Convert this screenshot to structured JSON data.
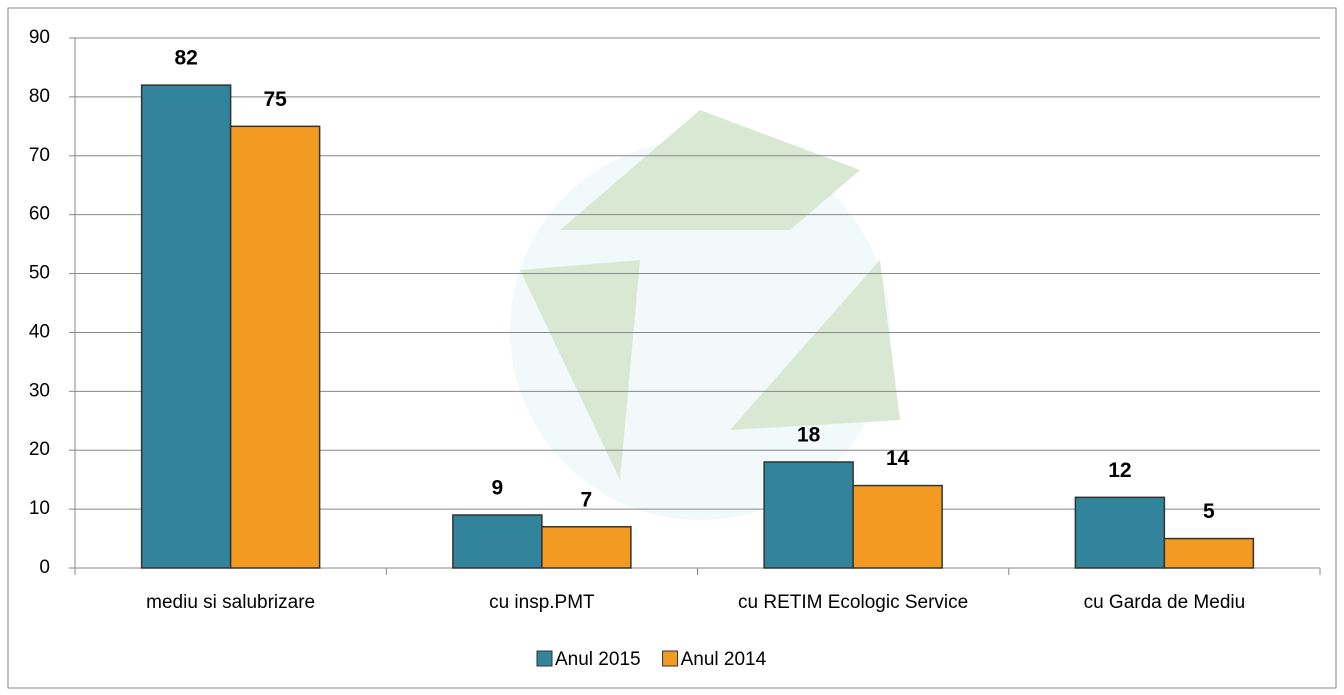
{
  "chart_data": {
    "type": "bar",
    "categories": [
      "mediu si salubrizare",
      "cu insp.PMT",
      "cu RETIM Ecologic Service",
      "cu Garda de Mediu"
    ],
    "series": [
      {
        "name": "Anul 2015",
        "color": "#31849b",
        "values": [
          82,
          9,
          18,
          12
        ]
      },
      {
        "name": "Anul 2014",
        "color": "#f39a22",
        "values": [
          75,
          7,
          14,
          5
        ]
      }
    ],
    "ylim": [
      0,
      90
    ],
    "yticks": [
      0,
      10,
      20,
      30,
      40,
      50,
      60,
      70,
      80,
      90
    ],
    "grid": true,
    "legend": "bottom"
  }
}
